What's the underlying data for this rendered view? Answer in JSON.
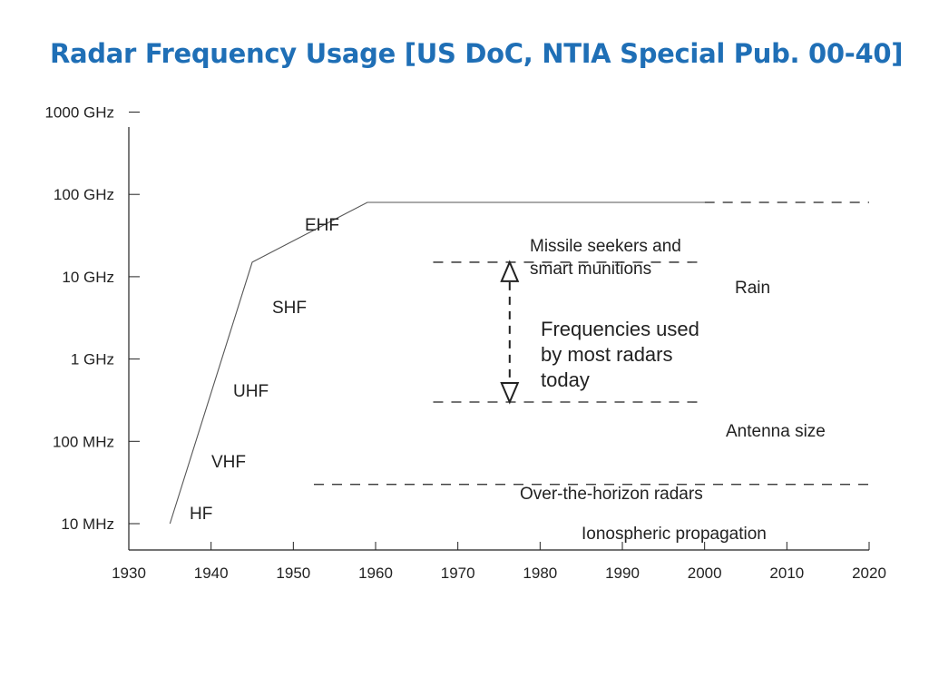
{
  "title": "Radar Frequency Usage [US DoC, NTIA Special Pub. 00-40]",
  "chart_data": {
    "type": "line",
    "x_ticks": [
      "1930",
      "1940",
      "1950",
      "1960",
      "1970",
      "1980",
      "1990",
      "2000",
      "2010",
      "2020"
    ],
    "y_ticks": [
      "10 MHz",
      "100 MHz",
      "1 GHz",
      "10 GHz",
      "100 GHz",
      "1000 GHz"
    ],
    "y_scale": "log",
    "xlim": [
      1930,
      2020
    ],
    "ylim_hz": [
      10000000.0,
      1000000000000.0
    ],
    "series": [
      {
        "values": [
          {
            "x": 1935,
            "y": "10 MHz"
          },
          {
            "x": 1945,
            "y": "15 GHz"
          },
          {
            "x": 1959,
            "y": "80 GHz"
          },
          {
            "x": 2000,
            "y": "80 GHz"
          }
        ]
      }
    ],
    "band_labels": [
      "EHF",
      "SHF",
      "UHF",
      "VHF",
      "HF"
    ],
    "annotations": {
      "missile": [
        "Missile seekers and",
        "smart munitions"
      ],
      "rain": "Rain",
      "frequencies": [
        "Frequencies used",
        "by most radars",
        "today"
      ],
      "antenna": "Antenna size",
      "oth": "Over-the-horizon radars",
      "iono": "Ionospheric propagation"
    },
    "grid": false,
    "colors": {
      "title": "#1f6fb6",
      "lines": "#222222"
    }
  }
}
